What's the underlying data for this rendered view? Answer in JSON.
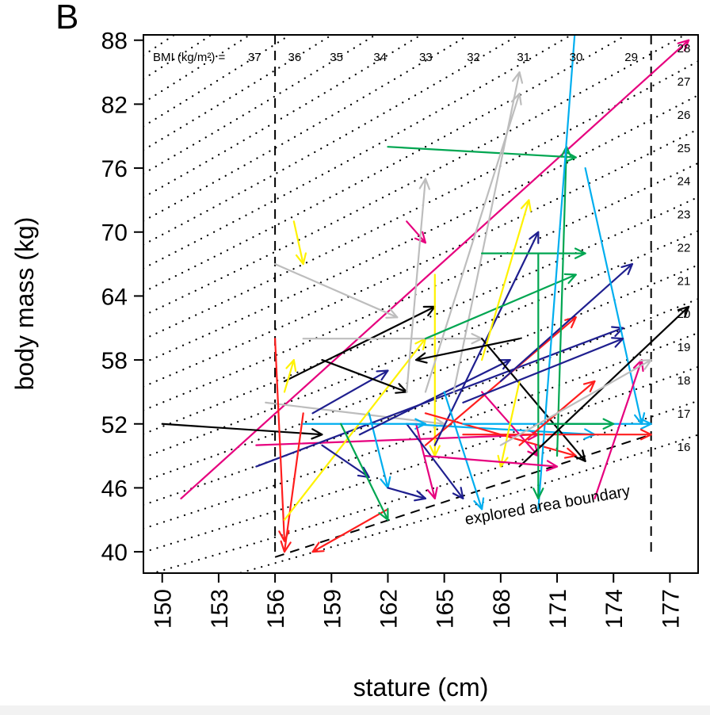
{
  "panel_label": "B",
  "chart_data": {
    "type": "scatter",
    "title": "",
    "xlabel": "stature (cm)",
    "ylabel": "body mass (kg)",
    "xlim": [
      149,
      178.5
    ],
    "ylim": [
      38,
      88.5
    ],
    "xticks": [
      150,
      153,
      156,
      159,
      162,
      165,
      168,
      171,
      174,
      177
    ],
    "yticks": [
      40,
      46,
      52,
      58,
      64,
      70,
      76,
      82,
      88
    ],
    "bmi_prefix": "BMI (kg/m²) =",
    "bmi_top_labels": [
      "37",
      "36",
      "35",
      "34",
      "33",
      "32",
      "31",
      "30",
      "29"
    ],
    "bmi_right_labels": [
      "28",
      "27",
      "26",
      "25",
      "24",
      "23",
      "22",
      "21",
      "20",
      "19",
      "18",
      "17",
      "16"
    ],
    "bmi_iso_values": [
      16,
      17,
      18,
      19,
      20,
      21,
      22,
      23,
      24,
      25,
      26,
      27,
      28,
      29,
      30,
      31,
      32,
      33,
      34,
      35,
      36,
      37,
      38,
      39,
      40
    ],
    "annotation": "explored area boundary",
    "boundary": {
      "x_left": 156,
      "x_right": 176,
      "bottom_line": [
        [
          156,
          39.5
        ],
        [
          176,
          51
        ]
      ]
    },
    "arrows": [
      {
        "color": "#e6007e",
        "from": [
          151,
          45
        ],
        "to": [
          178,
          88
        ]
      },
      {
        "color": "#000000",
        "from": [
          150,
          52
        ],
        "to": [
          158.5,
          51
        ]
      },
      {
        "color": "#e6007e",
        "from": [
          155,
          50
        ],
        "to": [
          170,
          51
        ]
      },
      {
        "color": "#bdbdbd",
        "from": [
          156,
          67
        ],
        "to": [
          162.5,
          62
        ]
      },
      {
        "color": "#bdbdbd",
        "from": [
          155.5,
          54
        ],
        "to": [
          165,
          52
        ]
      },
      {
        "color": "#1f1f8f",
        "from": [
          155,
          48
        ],
        "to": [
          174.5,
          61
        ]
      },
      {
        "color": "#000000",
        "from": [
          156.5,
          56
        ],
        "to": [
          164.5,
          63
        ]
      },
      {
        "color": "#ff1e1e",
        "from": [
          156,
          60
        ],
        "to": [
          156.5,
          41
        ]
      },
      {
        "color": "#ff1e1e",
        "from": [
          157.5,
          53
        ],
        "to": [
          156.5,
          40
        ]
      },
      {
        "color": "#fff200",
        "from": [
          157,
          71
        ],
        "to": [
          157.5,
          67
        ]
      },
      {
        "color": "#fff200",
        "from": [
          156.5,
          55
        ],
        "to": [
          157,
          58
        ]
      },
      {
        "color": "#fff200",
        "from": [
          156.5,
          43
        ],
        "to": [
          164,
          60
        ]
      },
      {
        "color": "#00aeef",
        "from": [
          157.5,
          52
        ],
        "to": [
          164,
          52
        ]
      },
      {
        "color": "#1f1f8f",
        "from": [
          158,
          53
        ],
        "to": [
          162,
          57
        ]
      },
      {
        "color": "#bdbdbd",
        "from": [
          157.5,
          60
        ],
        "to": [
          167,
          60
        ]
      },
      {
        "color": "#000000",
        "from": [
          158.5,
          58
        ],
        "to": [
          163,
          55
        ]
      },
      {
        "color": "#1f1f8f",
        "from": [
          158.5,
          50
        ],
        "to": [
          161,
          47
        ]
      },
      {
        "color": "#ff1e1e",
        "from": [
          162,
          44
        ],
        "to": [
          158,
          40
        ]
      },
      {
        "color": "#00aeef",
        "from": [
          161,
          53
        ],
        "to": [
          162,
          46
        ]
      },
      {
        "color": "#1f1f8f",
        "from": [
          160.5,
          51
        ],
        "to": [
          168.5,
          58
        ]
      },
      {
        "color": "#00a651",
        "from": [
          159.5,
          52
        ],
        "to": [
          162,
          43
        ]
      },
      {
        "color": "#e6007e",
        "from": [
          163,
          71
        ],
        "to": [
          164,
          69
        ]
      },
      {
        "color": "#bdbdbd",
        "from": [
          163,
          55
        ],
        "to": [
          164,
          75
        ]
      },
      {
        "color": "#1f1f8f",
        "from": [
          162,
          46
        ],
        "to": [
          164,
          45
        ]
      },
      {
        "color": "#e6007e",
        "from": [
          163.5,
          52
        ],
        "to": [
          164.5,
          45
        ]
      },
      {
        "color": "#1f1f8f",
        "from": [
          163,
          52
        ],
        "to": [
          166,
          45
        ]
      },
      {
        "color": "#fff200",
        "from": [
          164.5,
          66
        ],
        "to": [
          164.5,
          49
        ]
      },
      {
        "color": "#00aeef",
        "from": [
          163,
          52
        ],
        "to": [
          173,
          51
        ]
      },
      {
        "color": "#ff1e1e",
        "from": [
          164,
          50
        ],
        "to": [
          172,
          62
        ]
      },
      {
        "color": "#00a651",
        "from": [
          162,
          78
        ],
        "to": [
          172,
          77
        ]
      },
      {
        "color": "#bdbdbd",
        "from": [
          164,
          55
        ],
        "to": [
          169,
          83
        ]
      },
      {
        "color": "#bdbdbd",
        "from": [
          165.5,
          55
        ],
        "to": [
          169,
          85
        ]
      },
      {
        "color": "#1f1f8f",
        "from": [
          164.5,
          50
        ],
        "to": [
          170,
          70
        ]
      },
      {
        "color": "#00a651",
        "from": [
          164,
          60
        ],
        "to": [
          172,
          66
        ]
      },
      {
        "color": "#00aeef",
        "from": [
          165,
          55
        ],
        "to": [
          167,
          44
        ]
      },
      {
        "color": "#ff1e1e",
        "from": [
          164,
          53
        ],
        "to": [
          172,
          49
        ]
      },
      {
        "color": "#000000",
        "from": [
          167,
          60
        ],
        "to": [
          172.5,
          48.5
        ]
      },
      {
        "color": "#00a651",
        "from": [
          167,
          68
        ],
        "to": [
          172.5,
          68
        ]
      },
      {
        "color": "#fff200",
        "from": [
          167,
          58
        ],
        "to": [
          169.5,
          73
        ]
      },
      {
        "color": "#e6007e",
        "from": [
          167,
          55
        ],
        "to": [
          170,
          49
        ]
      },
      {
        "color": "#1f1f8f",
        "from": [
          168,
          56
        ],
        "to": [
          175,
          67
        ]
      },
      {
        "color": "#000000",
        "from": [
          169,
          60
        ],
        "to": [
          163.5,
          58
        ]
      },
      {
        "color": "#00aeef",
        "from": [
          166,
          52
        ],
        "to": [
          176,
          52
        ]
      },
      {
        "color": "#ff1e1e",
        "from": [
          166,
          51
        ],
        "to": [
          176,
          51
        ]
      },
      {
        "color": "#00a651",
        "from": [
          171,
          49
        ],
        "to": [
          171.5,
          78
        ]
      },
      {
        "color": "#00aeef",
        "from": [
          170,
          44
        ],
        "to": [
          172,
          90
        ]
      },
      {
        "color": "#00aeef",
        "from": [
          172.5,
          76
        ],
        "to": [
          175.5,
          52
        ]
      },
      {
        "color": "#e6007e",
        "from": [
          173,
          45
        ],
        "to": [
          175.5,
          58
        ]
      },
      {
        "color": "#000000",
        "from": [
          169,
          48
        ],
        "to": [
          178,
          63
        ]
      },
      {
        "color": "#00a651",
        "from": [
          170,
          68
        ],
        "to": [
          170,
          45
        ]
      },
      {
        "color": "#ff1e1e",
        "from": [
          169,
          50
        ],
        "to": [
          173,
          56
        ]
      },
      {
        "color": "#fff200",
        "from": [
          169,
          56
        ],
        "to": [
          168,
          48
        ]
      },
      {
        "color": "#1f1f8f",
        "from": [
          166,
          54
        ],
        "to": [
          174.5,
          60
        ]
      },
      {
        "color": "#e6007e",
        "from": [
          164,
          49
        ],
        "to": [
          171,
          48
        ]
      },
      {
        "color": "#00a651",
        "from": [
          170.5,
          52
        ],
        "to": [
          174,
          52
        ]
      },
      {
        "color": "#bdbdbd",
        "from": [
          168,
          50
        ],
        "to": [
          176,
          58
        ]
      }
    ]
  }
}
